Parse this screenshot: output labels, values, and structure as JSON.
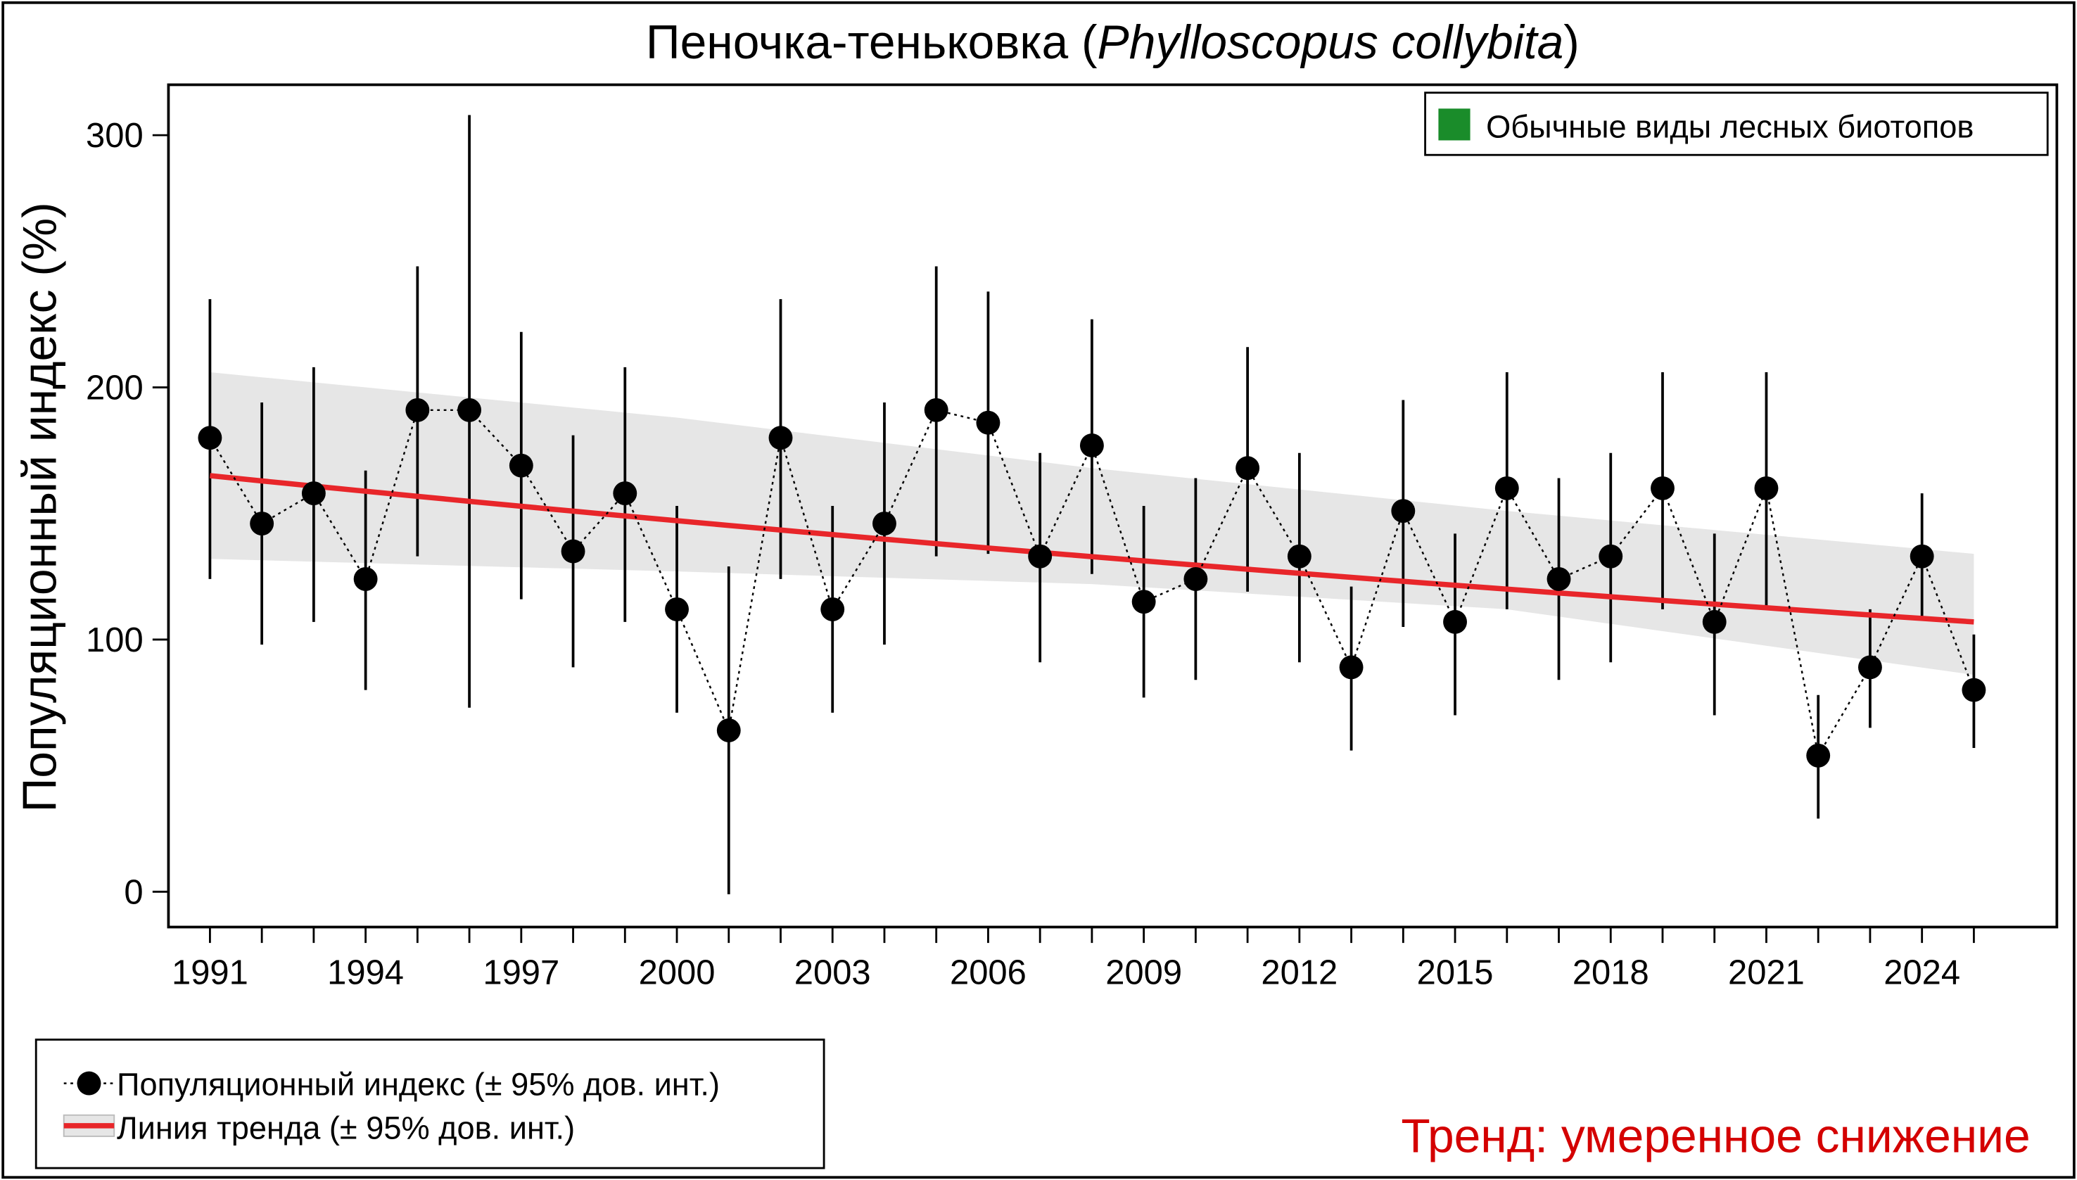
{
  "chart_data": {
    "type": "line",
    "title_main": "Пеночка-теньковка (",
    "title_italic": "Phylloscopus collybita",
    "title_end": ")",
    "ylabel": "Популяционный индекс (%)",
    "xlabel": "",
    "xlim": [
      1990.2,
      2026.6
    ],
    "ylim": [
      -14,
      320
    ],
    "x_ticks": [
      1991,
      1994,
      1997,
      2000,
      2003,
      2006,
      2009,
      2012,
      2015,
      2018,
      2021,
      2024
    ],
    "y_ticks": [
      0,
      100,
      200,
      300
    ],
    "grid": false,
    "x": [
      1991,
      1992,
      1993,
      1994,
      1995,
      1996,
      1997,
      1998,
      1999,
      2000,
      2001,
      2002,
      2003,
      2004,
      2005,
      2006,
      2007,
      2008,
      2009,
      2010,
      2011,
      2012,
      2013,
      2014,
      2015,
      2016,
      2017,
      2018,
      2019,
      2020,
      2021,
      2022,
      2023,
      2024,
      2025
    ],
    "series": [
      {
        "name": "Популяционный индекс (± 95% дов. инт.)",
        "values": [
          180,
          146,
          158,
          124,
          191,
          191,
          169,
          135,
          158,
          112,
          64,
          180,
          112,
          146,
          191,
          186,
          133,
          177,
          115,
          124,
          168,
          133,
          89,
          151,
          107,
          160,
          124,
          133,
          160,
          107,
          160,
          54,
          89,
          133,
          80
        ],
        "ci_upper": [
          235,
          194,
          208,
          167,
          248,
          308,
          222,
          181,
          208,
          153,
          129,
          235,
          153,
          194,
          248,
          238,
          174,
          227,
          153,
          164,
          216,
          174,
          121,
          195,
          142,
          206,
          164,
          174,
          206,
          142,
          206,
          78,
          112,
          158,
          102
        ],
        "ci_lower": [
          124,
          98,
          107,
          80,
          133,
          73,
          116,
          89,
          107,
          71,
          -1,
          124,
          71,
          98,
          133,
          134,
          91,
          126,
          77,
          84,
          119,
          91,
          56,
          105,
          70,
          112,
          84,
          91,
          112,
          70,
          112,
          29,
          65,
          108,
          57
        ],
        "color": "#000000"
      },
      {
        "name": "Линия тренда (± 95% дов. инт.)",
        "trend_start": {
          "x": 1991,
          "y": 165
        },
        "trend_end": {
          "x": 2025,
          "y": 107
        },
        "band_x": [
          1991,
          2000,
          2008,
          2016,
          2025
        ],
        "band_upper": [
          206,
          188,
          168,
          151,
          134
        ],
        "band_lower": [
          132,
          127,
          122,
          112,
          86
        ],
        "color": "#e8262a",
        "band_color": "#e6e6e6"
      }
    ],
    "legend_top": {
      "label": "Обычные виды лесных биотопов",
      "color": "#1a8c2a",
      "placement": "top-right"
    },
    "legend_bottom": {
      "placement": "bottom-left"
    },
    "annotation": {
      "text": "Тренд: умеренное снижение",
      "color": "#d40000"
    }
  }
}
